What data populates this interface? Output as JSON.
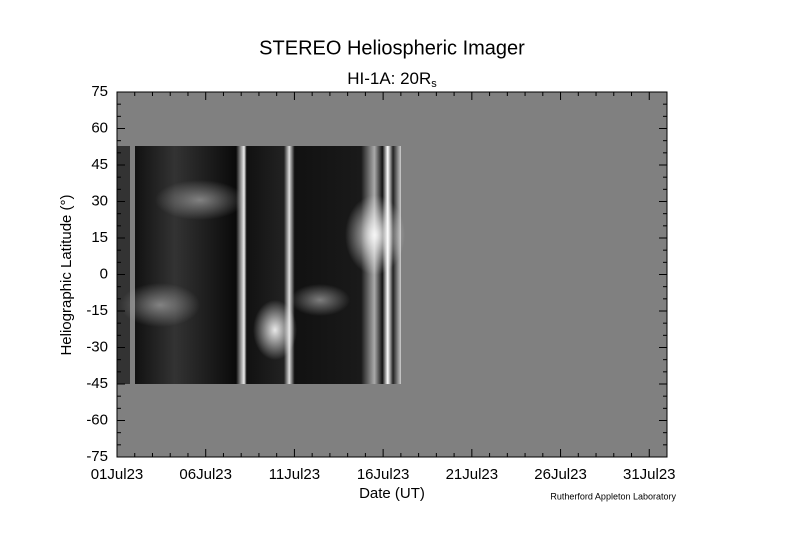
{
  "chart_data": {
    "type": "image-map",
    "title": "STEREO Heliospheric Imager",
    "subtitle": "HI-1A: 20R",
    "subtitle_subscript": "s",
    "x_label": "Date (UT)",
    "y_label": "Heliographic Latitude (°)",
    "credit": "Rutherford Appleton Laboratory",
    "xlim": [
      1,
      32
    ],
    "xticks": [
      {
        "value": 1,
        "label": "01Jul23"
      },
      {
        "value": 6,
        "label": "06Jul23"
      },
      {
        "value": 11,
        "label": "11Jul23"
      },
      {
        "value": 16,
        "label": "16Jul23"
      },
      {
        "value": 21,
        "label": "21Jul23"
      },
      {
        "value": 26,
        "label": "26Jul23"
      },
      {
        "value": 31,
        "label": "31Jul23"
      }
    ],
    "ylim": [
      -75,
      75
    ],
    "yticks": [
      -75,
      -60,
      -45,
      -30,
      -15,
      0,
      15,
      30,
      45,
      60,
      75
    ],
    "background_color": "#808080"
  }
}
